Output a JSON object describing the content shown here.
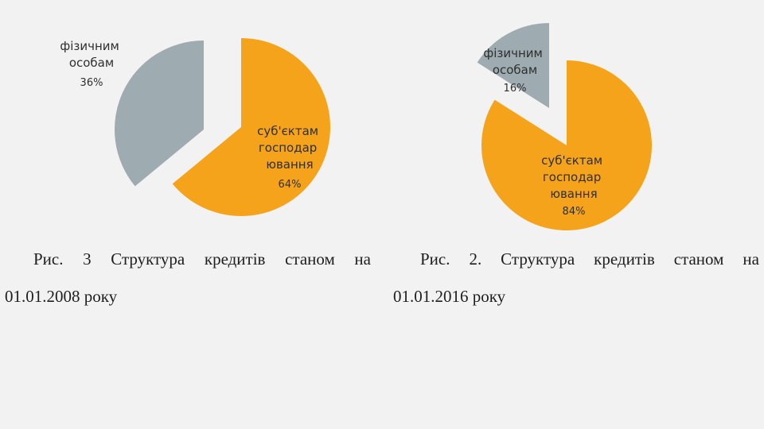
{
  "colors": {
    "orange": "#f5a31a",
    "gray": "#9eabb1",
    "background": "#f2f2f2"
  },
  "chart_data": [
    {
      "type": "pie",
      "slices": [
        {
          "label_lines": [
            "фізичним",
            "особам"
          ],
          "pct_text": "36%",
          "value": 36
        },
        {
          "label_lines": [
            "суб'єктам",
            "господар",
            "ювання"
          ],
          "pct_text": "64%",
          "value": 64
        }
      ],
      "caption_line1": [
        "Рис.",
        "3",
        "Структура",
        "кредитів",
        "станом",
        "на"
      ],
      "caption_line2": "01.01.2008 року"
    },
    {
      "type": "pie",
      "slices": [
        {
          "label_lines": [
            "фізичним",
            "особам"
          ],
          "pct_text": "16%",
          "value": 16
        },
        {
          "label_lines": [
            "суб'єктам",
            "господар",
            "ювання"
          ],
          "pct_text": "84%",
          "value": 84
        }
      ],
      "caption_line1": [
        "Рис.",
        "2.",
        "Структура",
        "кредитів",
        "станом",
        "на"
      ],
      "caption_line2": "01.01.2016 року"
    }
  ]
}
